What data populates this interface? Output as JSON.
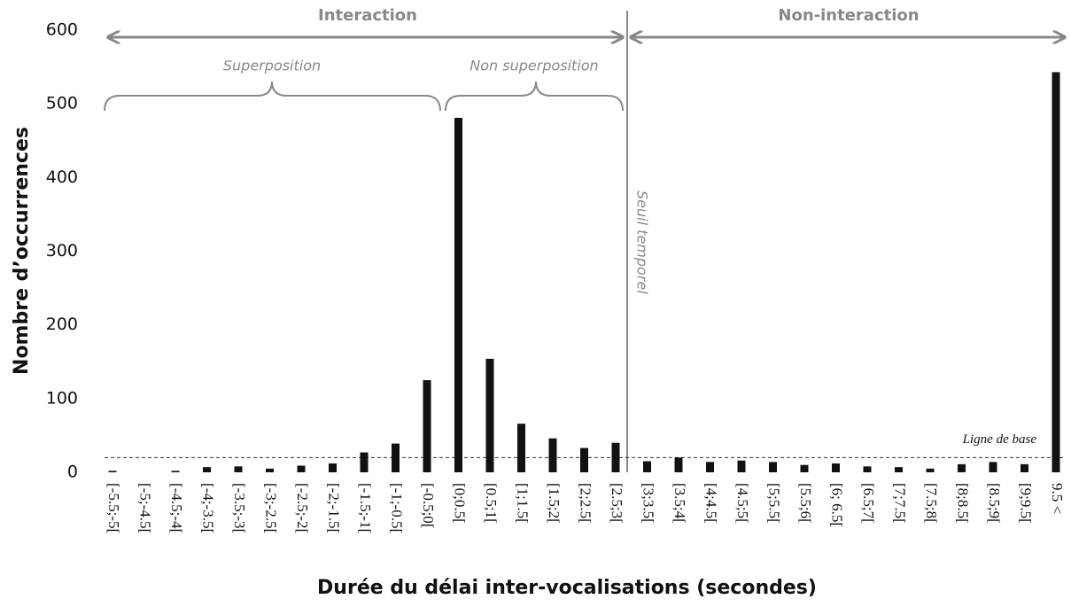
{
  "chart_data": {
    "type": "bar",
    "xlabel": "Durée du délai inter-vocalisations (secondes)",
    "ylabel": "Nombre d’occurrences",
    "categories": [
      "[-5.5;-5[",
      "[-5;-4.5[",
      "[-4.5;-4[",
      "[-4;-3.5[",
      "[-3.5;-3[",
      "[-3;-2.5[",
      "[-2.5;-2[",
      "[-2;-1.5[",
      "[-1.5;-1[",
      "[-1;-0.5[",
      "[-0.5;0[",
      "[0;0.5[",
      "[0.5;1[",
      "[1;1.5[",
      "[1.5;2[",
      "[2;2.5[",
      "[2.5;3[",
      "[3;3.5[",
      "[3.5;4[",
      "[4;4.5[",
      "[4.5;5[",
      "[5;5.5[",
      "[5.5;6[",
      "[6; 6.5[",
      "[6.5;7[",
      "[7;7.5[",
      "[7.5;8[",
      "[8;8.5[",
      "[8.5;9[",
      "[9;9.5[",
      "9.5 <"
    ],
    "values": [
      2,
      0,
      2,
      7,
      8,
      5,
      9,
      12,
      27,
      39,
      125,
      481,
      154,
      66,
      46,
      33,
      40,
      15,
      20,
      14,
      16,
      14,
      10,
      12,
      8,
      7,
      5,
      11,
      14,
      11,
      543
    ],
    "color": "#111111",
    "ylim": [
      0,
      600
    ],
    "yticks": [
      0,
      100,
      200,
      300,
      400,
      500,
      600
    ],
    "baseline": {
      "label": "Ligne de base",
      "value": 20
    },
    "annotations": {
      "interaction": "Interaction",
      "non_interaction": "Non-interaction",
      "superposition": "Superposition",
      "non_superposition": "Non superposition",
      "threshold": "Seuil temporel"
    }
  }
}
